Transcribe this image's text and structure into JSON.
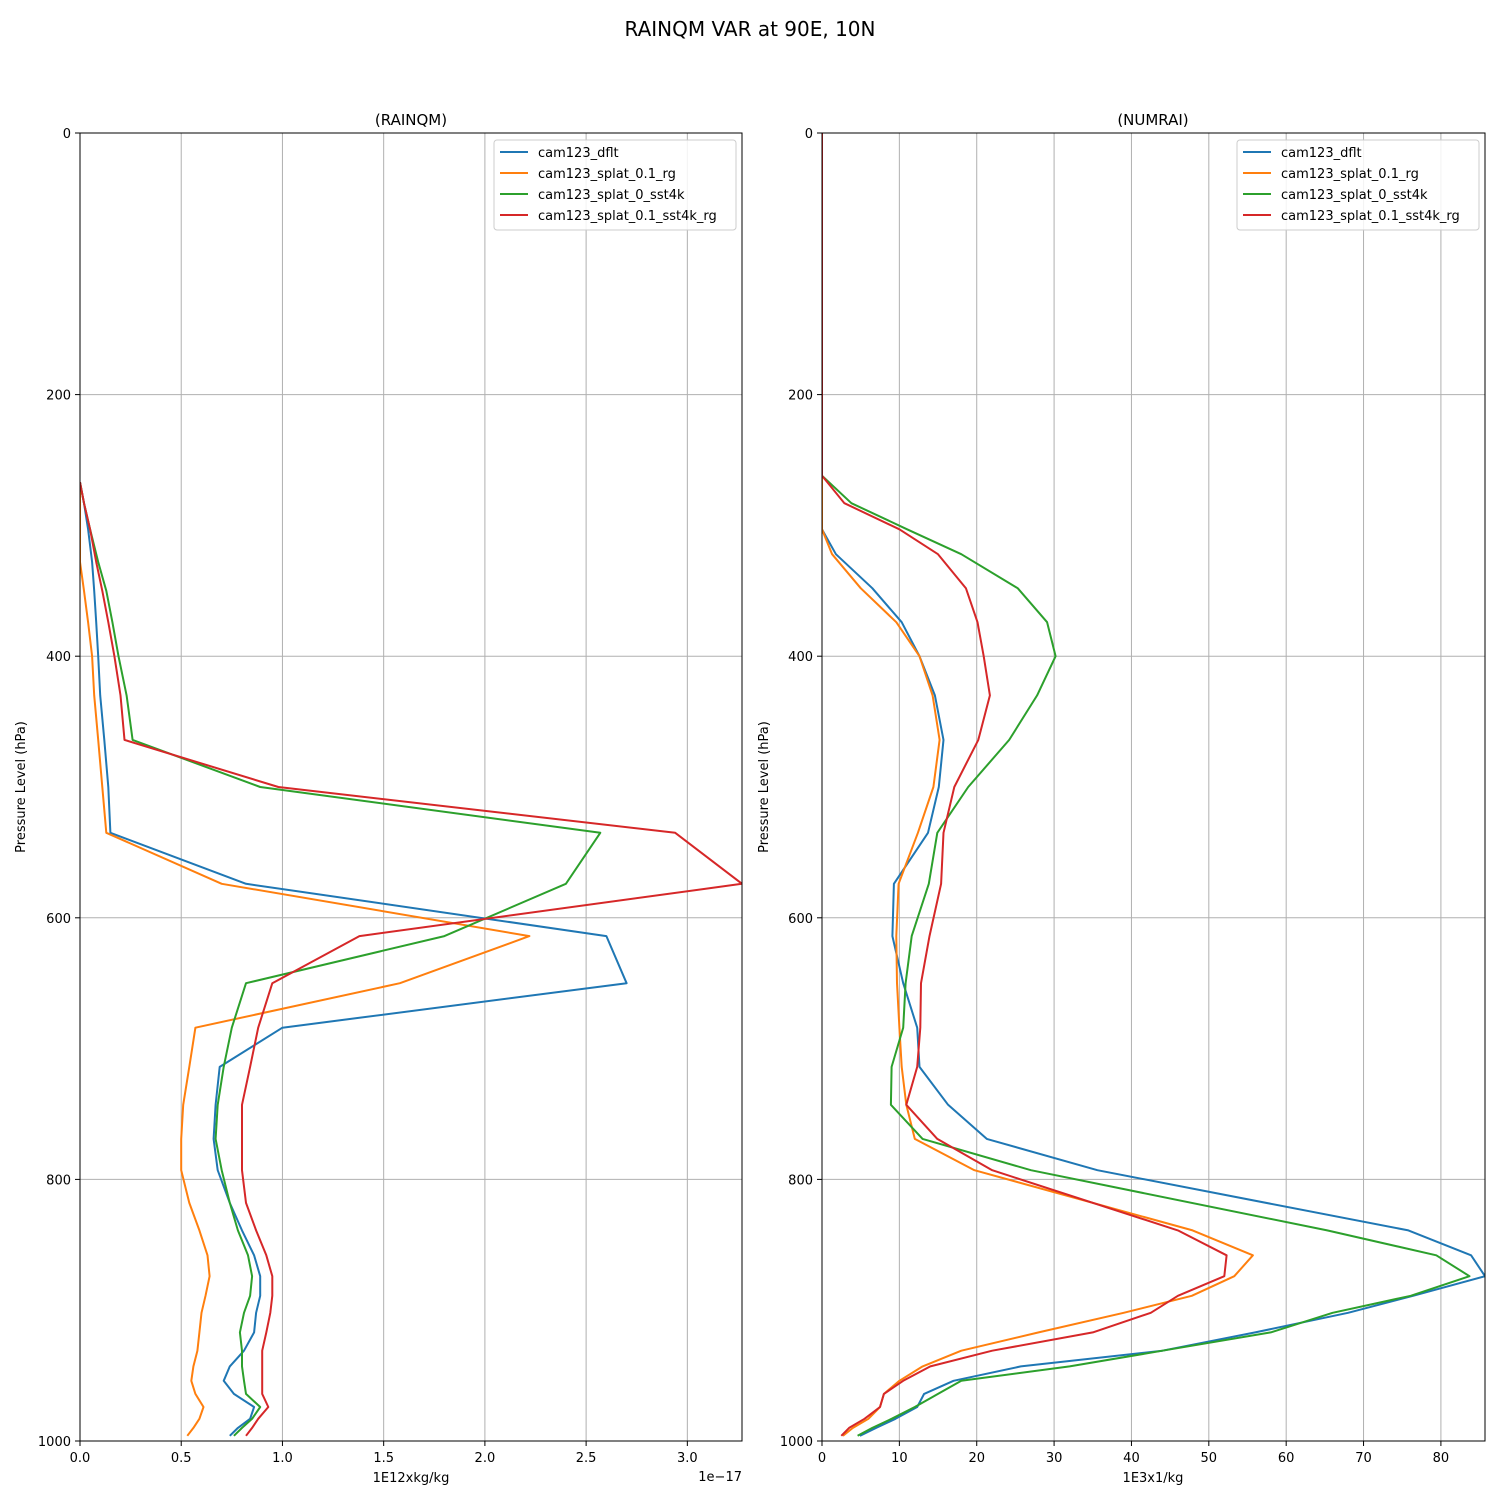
{
  "figure": {
    "suptitle": "RAINQM VAR at 90E, 10N"
  },
  "colors": {
    "cam123_dflt": "#1f77b4",
    "cam123_splat_0.1_rg": "#ff7f0e",
    "cam123_splat_0_sst4k": "#2ca02c",
    "cam123_splat_0.1_sst4k_rg": "#d62728"
  },
  "chart_data": [
    {
      "type": "line",
      "title": "(RAINQM)",
      "xlabel": "1E12xkg/kg",
      "ylabel": "Pressure Level (hPa)",
      "x_offset_text": "1e−17",
      "xlim": [
        0,
        3.27
      ],
      "ylim": [
        1000,
        0
      ],
      "y_inverted": true,
      "xticks": [
        "0.0",
        "0.5",
        "1.0",
        "1.5",
        "2.0",
        "2.5",
        "3.0"
      ],
      "yticks": [
        "0",
        "200",
        "400",
        "600",
        "800",
        "1000"
      ],
      "grid": true,
      "legend_position": "top-right",
      "levels": [
        267,
        283,
        303,
        328,
        350,
        374,
        400,
        430,
        464,
        500,
        535,
        574,
        614,
        650,
        684,
        714,
        743,
        769,
        793,
        818,
        839,
        858,
        874,
        889,
        902,
        917,
        931,
        943,
        954,
        964,
        974,
        983,
        990,
        996
      ],
      "series": [
        {
          "name": "cam123_dflt",
          "x": [
            0.0,
            0.02,
            0.04,
            0.06,
            0.07,
            0.08,
            0.09,
            0.1,
            0.12,
            0.14,
            0.15,
            0.82,
            2.6,
            2.7,
            1.0,
            0.69,
            0.67,
            0.66,
            0.68,
            0.74,
            0.8,
            0.86,
            0.89,
            0.89,
            0.87,
            0.86,
            0.81,
            0.74,
            0.71,
            0.76,
            0.86,
            0.84,
            0.78,
            0.74
          ]
        },
        {
          "name": "cam123_splat_0.1_rg",
          "x": [
            0.0,
            0.0,
            0.0,
            0.0,
            0.02,
            0.04,
            0.06,
            0.07,
            0.09,
            0.11,
            0.13,
            0.7,
            2.22,
            1.58,
            0.57,
            0.54,
            0.51,
            0.5,
            0.5,
            0.54,
            0.59,
            0.63,
            0.64,
            0.62,
            0.6,
            0.59,
            0.58,
            0.56,
            0.55,
            0.57,
            0.61,
            0.59,
            0.56,
            0.53
          ]
        },
        {
          "name": "cam123_splat_0_sst4k",
          "x": [
            0.0,
            0.02,
            0.05,
            0.09,
            0.13,
            0.16,
            0.19,
            0.23,
            0.26,
            0.89,
            2.57,
            2.4,
            1.8,
            0.82,
            0.75,
            0.71,
            0.68,
            0.67,
            0.7,
            0.74,
            0.78,
            0.83,
            0.85,
            0.84,
            0.81,
            0.79,
            0.8,
            0.8,
            0.81,
            0.82,
            0.89,
            0.85,
            0.8,
            0.76
          ]
        },
        {
          "name": "cam123_splat_0.1_sst4k_rg",
          "x": [
            0.0,
            0.02,
            0.05,
            0.08,
            0.11,
            0.14,
            0.17,
            0.2,
            0.22,
            0.98,
            2.94,
            3.27,
            1.38,
            0.95,
            0.88,
            0.84,
            0.8,
            0.8,
            0.8,
            0.82,
            0.87,
            0.92,
            0.95,
            0.95,
            0.94,
            0.92,
            0.9,
            0.9,
            0.9,
            0.9,
            0.93,
            0.88,
            0.85,
            0.82
          ]
        }
      ]
    },
    {
      "type": "line",
      "title": "(NUMRAI)",
      "xlabel": "1E3x1/kg",
      "ylabel": "Pressure Level (hPa)",
      "xlim": [
        0,
        85.7
      ],
      "ylim": [
        1000,
        0
      ],
      "y_inverted": true,
      "xticks": [
        "0",
        "10",
        "20",
        "30",
        "40",
        "50",
        "60",
        "70",
        "80"
      ],
      "yticks": [
        "0",
        "200",
        "400",
        "600",
        "800",
        "1000"
      ],
      "grid": true,
      "legend_position": "top-right",
      "levels": [
        0,
        200,
        246,
        262,
        283,
        303,
        322,
        348,
        374,
        400,
        430,
        464,
        500,
        535,
        574,
        614,
        650,
        684,
        714,
        743,
        769,
        793,
        839,
        858,
        874,
        889,
        902,
        917,
        931,
        943,
        954,
        964,
        974,
        983,
        990,
        996
      ],
      "series": [
        {
          "name": "cam123_dflt",
          "x": [
            0.0,
            0.0,
            0.0,
            0.0,
            0.0,
            0.0,
            1.8,
            6.5,
            10.3,
            12.6,
            14.6,
            15.7,
            15.1,
            13.7,
            9.3,
            9.1,
            10.5,
            12.3,
            12.6,
            16.3,
            21.3,
            35.6,
            75.8,
            83.9,
            85.7,
            76.4,
            68.0,
            56.0,
            44.0,
            25.7,
            17.0,
            13.2,
            12.3,
            9.5,
            7.0,
            4.9
          ]
        },
        {
          "name": "cam123_splat_0.1_rg",
          "x": [
            0.0,
            0.0,
            0.0,
            0.0,
            0.0,
            0.0,
            1.3,
            5.0,
            9.6,
            12.6,
            14.3,
            15.2,
            14.4,
            12.4,
            9.9,
            9.6,
            9.7,
            10.0,
            10.3,
            10.9,
            12.0,
            19.7,
            47.9,
            55.7,
            53.3,
            47.8,
            39.0,
            28.0,
            18.0,
            13.0,
            10.0,
            8.0,
            7.5,
            6.0,
            4.0,
            2.7
          ]
        },
        {
          "name": "cam123_splat_0_sst4k",
          "x": [
            0.0,
            0.0,
            0.0,
            0.0,
            3.8,
            11.0,
            18.0,
            25.3,
            29.1,
            30.2,
            27.8,
            24.2,
            18.9,
            14.9,
            13.8,
            11.6,
            10.8,
            10.5,
            9.0,
            8.9,
            13.0,
            27.0,
            65.3,
            79.4,
            83.7,
            76.1,
            66.0,
            58.0,
            44.0,
            32.0,
            18.0,
            15.0,
            12.0,
            9.0,
            6.5,
            4.6
          ]
        },
        {
          "name": "cam123_splat_0.1_sst4k_rg",
          "x": [
            0.0,
            0.0,
            0.0,
            0.0,
            2.9,
            10.0,
            15.0,
            18.6,
            20.1,
            20.9,
            21.7,
            20.2,
            17.1,
            15.7,
            15.4,
            13.9,
            12.8,
            12.7,
            12.3,
            10.9,
            14.9,
            22.0,
            46.0,
            52.3,
            52.0,
            46.0,
            42.5,
            35.0,
            22.0,
            14.0,
            10.5,
            8.0,
            7.5,
            5.5,
            3.5,
            2.5
          ]
        }
      ]
    }
  ]
}
